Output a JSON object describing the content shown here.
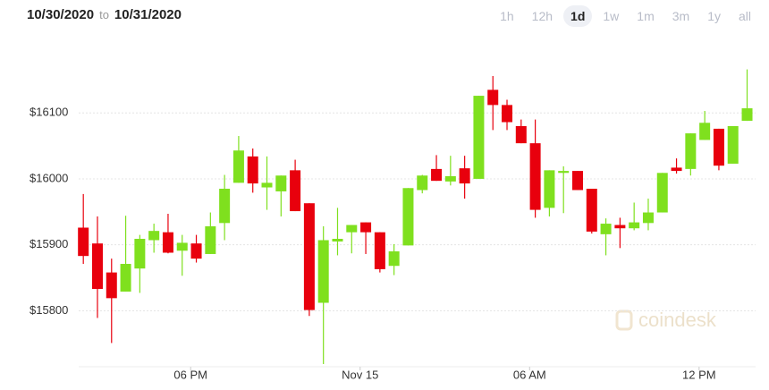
{
  "header": {
    "from": "10/30/2020",
    "sep": "to",
    "to": "10/31/2020",
    "ranges": [
      "1h",
      "12h",
      "1d",
      "1w",
      "1m",
      "3m",
      "1y",
      "all"
    ],
    "active_range": 2
  },
  "watermark": "coindesk",
  "chart_data": {
    "type": "candlestick",
    "categories": [
      null,
      null,
      null,
      null,
      null,
      null,
      null,
      null,
      null,
      null,
      null,
      null,
      null,
      null,
      null,
      null,
      null,
      null,
      null,
      null,
      null,
      null,
      null,
      null,
      null,
      null,
      null,
      null,
      null,
      null,
      null,
      null,
      null,
      null,
      null,
      null,
      null,
      null,
      null,
      null,
      null,
      null,
      null,
      null,
      null,
      null,
      null,
      null
    ],
    "open": [
      15926,
      15902,
      15858,
      15829,
      15864,
      15907,
      15919,
      15891,
      15902,
      15886,
      15933,
      15994,
      16034,
      15987,
      15981,
      16013,
      15963,
      15812,
      15905,
      15919,
      15934,
      15919,
      15868,
      15899,
      15983,
      16015,
      15996,
      16016,
      16000,
      16135,
      16112,
      16080,
      16054,
      15956,
      16009,
      16012,
      15985,
      15916,
      15930,
      15925,
      15933,
      15949,
      16017,
      16015,
      16059,
      16076,
      16023,
      16088
    ],
    "high": [
      15977,
      15943,
      15879,
      15944,
      15915,
      15932,
      15947,
      15915,
      15915,
      15949,
      16006,
      16065,
      16046,
      16034,
      16005,
      16029,
      15963,
      15928,
      15956,
      15930,
      15934,
      15919,
      15901,
      15986,
      16006,
      16036,
      16035,
      16035,
      16126,
      16156,
      16120,
      16090,
      16090,
      16013,
      16019,
      16012,
      15985,
      15940,
      15941,
      15964,
      15970,
      16009,
      16031,
      16069,
      16103,
      16076,
      16080,
      16166
    ],
    "low": [
      15871,
      15789,
      15751,
      15829,
      15827,
      15888,
      15887,
      15853,
      15873,
      15886,
      15907,
      15994,
      15979,
      15953,
      15943,
      15951,
      15792,
      15719,
      15884,
      15887,
      15886,
      15858,
      15854,
      15899,
      15978,
      15997,
      15990,
      15970,
      16000,
      16074,
      16074,
      16054,
      15941,
      15943,
      15948,
      15983,
      15917,
      15884,
      15895,
      15922,
      15922,
      15949,
      16008,
      16005,
      16059,
      16013,
      16023,
      16088
    ],
    "close": [
      15883,
      15833,
      15819,
      15871,
      15909,
      15921,
      15888,
      15903,
      15879,
      15928,
      15985,
      16043,
      15993,
      15994,
      16005,
      15951,
      15801,
      15907,
      15909,
      15930,
      15919,
      15863,
      15890,
      15986,
      16005,
      15997,
      16004,
      15993,
      16126,
      16112,
      16086,
      16054,
      15953,
      16013,
      16012,
      15983,
      15920,
      15932,
      15925,
      15934,
      15949,
      16009,
      16012,
      16069,
      16085,
      16020,
      16080,
      16107
    ],
    "up_color": "#7fe01e",
    "down_color": "#e8000d",
    "ylim": [
      15715,
      16217
    ],
    "yticks": [
      {
        "value": 15800,
        "label": "$15800"
      },
      {
        "value": 15900,
        "label": "$15900"
      },
      {
        "value": 16000,
        "label": "$16000"
      },
      {
        "value": 16100,
        "label": "$16100"
      }
    ],
    "xlim": [
      -5.9,
      47.6
    ],
    "xticks": [
      {
        "value": 7.6,
        "label": "06 PM"
      },
      {
        "value": 19.6,
        "label": "Nov 15"
      },
      {
        "value": 31.6,
        "label": "06 AM"
      },
      {
        "value": 43.6,
        "label": "12 PM"
      }
    ],
    "grid": true
  }
}
